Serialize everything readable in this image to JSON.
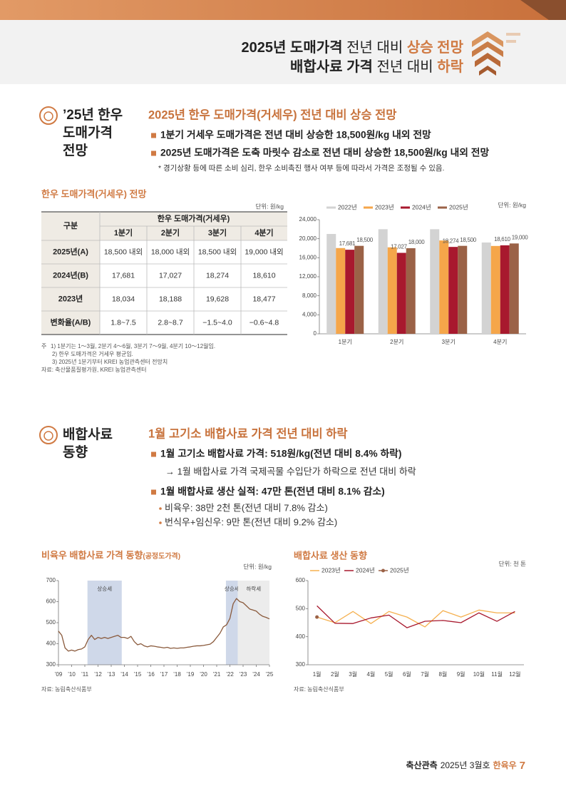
{
  "header": {
    "line1": [
      "2025년 도매가격",
      " 전년 대비 ",
      "상승 전망"
    ],
    "line2": [
      "배합사료 가격",
      " 전년 대비 ",
      "하락"
    ]
  },
  "section1": {
    "title": [
      "’25년 한우",
      "도매가격",
      "전망"
    ],
    "heading": "2025년 한우 도매가격(거세우) 전년 대비 상승 전망",
    "bullets": [
      "1분기 거세우 도매가격은 전년 대비 상승한 18,500원/kg 내외 전망",
      "2025년 도매가격은 도축 마릿수 감소로 전년 대비 상승한 18,500원/kg 내외 전망"
    ],
    "note": "* 경기상황 등에 따른 소비 심리, 한우 소비촉진 행사 여부 등에 따라서 가격은 조정될 수 있음."
  },
  "table": {
    "title": "한우 도매가격(거세우) 전망",
    "unit": "단위: 원/kg",
    "corner": "구분",
    "group_header": "한우 도매가격(거세우)",
    "columns": [
      "1분기",
      "2분기",
      "3분기",
      "4분기"
    ],
    "rows": [
      [
        "2025년(A)",
        "18,500 내외",
        "18,000 내외",
        "18,500 내외",
        "19,000 내외"
      ],
      [
        "2024년(B)",
        "17,681",
        "17,027",
        "18,274",
        "18,610"
      ],
      [
        "2023년",
        "18,034",
        "18,188",
        "19,628",
        "18,477"
      ],
      [
        "변화율(A/B)",
        "1.8~7.5",
        "2.8~8.7",
        "−1.5~4.0",
        "−0.6~4.8"
      ]
    ],
    "footnote_mark": "주",
    "footnotes": [
      "1) 1분기는 1～3월, 2분기 4～6월, 3분기 7～9월, 4분기 10～12월임.",
      "2) 한우 도매가격은 거세우 평균임.",
      "3) 2025년 1분기부터 KREI 농업관측센터 전망치"
    ],
    "source": "자료: 축산물품질평가원, KREI 농업관측센터"
  },
  "chart_data": [
    {
      "type": "bar",
      "unit": "단위: 원/kg",
      "categories": [
        "1분기",
        "2분기",
        "3분기",
        "4분기"
      ],
      "series": [
        {
          "name": "2022년",
          "color": "#d3d3d3",
          "values": [
            21000,
            22000,
            22000,
            19200
          ]
        },
        {
          "name": "2023년",
          "color": "#f5a64a",
          "values": [
            18034,
            18188,
            19628,
            18477
          ]
        },
        {
          "name": "2024년",
          "color": "#a8192e",
          "values": [
            17681,
            17027,
            18274,
            18610
          ],
          "value_labels": [
            "17,681",
            "17,027",
            "18,274",
            "18,610"
          ]
        },
        {
          "name": "2025년",
          "color": "#9b6247",
          "values": [
            18500,
            18000,
            18500,
            19000
          ],
          "value_labels": [
            "18,500",
            "18,000",
            "18,500",
            "19,000"
          ]
        }
      ],
      "ylim": [
        0,
        24000
      ],
      "yticks": [
        0,
        {
          "value": 4000,
          "label": "4,000"
        },
        {
          "value": 8000,
          "label": "8,000"
        },
        {
          "value": 12000,
          "label": "12,000"
        },
        {
          "value": 16000,
          "label": "16,000"
        },
        {
          "value": 20000,
          "label": "20,000"
        },
        {
          "value": 24000,
          "label": "24,000"
        }
      ],
      "grid": false,
      "legend": "top"
    },
    {
      "type": "line",
      "title": "비육우 배합사료 가격 동향",
      "title_note": "(공정도가격)",
      "unit": "단위: 원/kg",
      "source": "자료: 농림축산식품부",
      "x": [
        2009,
        2009.25,
        2009.5,
        2009.75,
        2010,
        2010.25,
        2010.5,
        2010.75,
        2011,
        2011.25,
        2011.5,
        2011.75,
        2012,
        2012.25,
        2012.5,
        2012.75,
        2013,
        2013.25,
        2013.5,
        2013.75,
        2014,
        2014.25,
        2014.5,
        2014.75,
        2015,
        2015.25,
        2015.5,
        2015.75,
        2016,
        2016.25,
        2016.5,
        2016.75,
        2017,
        2017.25,
        2017.5,
        2017.75,
        2018,
        2018.25,
        2018.5,
        2018.75,
        2019,
        2019.25,
        2019.5,
        2019.75,
        2020,
        2020.25,
        2020.5,
        2020.75,
        2021,
        2021.25,
        2021.5,
        2021.75,
        2022,
        2022.25,
        2022.5,
        2022.75,
        2023,
        2023.25,
        2023.5,
        2023.75,
        2024,
        2024.25,
        2024.5,
        2024.75,
        2025
      ],
      "values": [
        460,
        440,
        380,
        365,
        370,
        365,
        372,
        375,
        385,
        420,
        440,
        420,
        430,
        425,
        430,
        425,
        430,
        435,
        440,
        430,
        430,
        425,
        435,
        410,
        395,
        400,
        390,
        385,
        390,
        388,
        385,
        383,
        380,
        383,
        378,
        380,
        378,
        380,
        380,
        383,
        385,
        388,
        390,
        390,
        392,
        395,
        398,
        410,
        430,
        450,
        480,
        490,
        520,
        590,
        615,
        600,
        595,
        580,
        565,
        560,
        555,
        540,
        530,
        525,
        518
      ],
      "color": "#8a5a3c",
      "xlim": [
        2009,
        2025
      ],
      "xticks": [
        {
          "value": 2009,
          "label": "’09"
        },
        {
          "value": 2010,
          "label": "’10"
        },
        {
          "value": 2011,
          "label": "’11"
        },
        {
          "value": 2012,
          "label": "’12"
        },
        {
          "value": 2013,
          "label": "’13"
        },
        {
          "value": 2014,
          "label": "’14"
        },
        {
          "value": 2015,
          "label": "’15"
        },
        {
          "value": 2016,
          "label": "’16"
        },
        {
          "value": 2017,
          "label": "’17"
        },
        {
          "value": 2018,
          "label": "’18"
        },
        {
          "value": 2019,
          "label": "’19"
        },
        {
          "value": 2020,
          "label": "’20"
        },
        {
          "value": 2021,
          "label": "’21"
        },
        {
          "value": 2022,
          "label": "’22"
        },
        {
          "value": 2023,
          "label": "’23"
        },
        {
          "value": 2024,
          "label": "’24"
        },
        {
          "value": 2025,
          "label": "’25"
        }
      ],
      "ylim": [
        300,
        700
      ],
      "yticks": [
        300,
        400,
        500,
        600,
        700
      ],
      "annotations": [
        {
          "label": "상승세",
          "x": [
            2011.2,
            2013.8
          ],
          "color": "#cfd8e9"
        },
        {
          "label": "상승세",
          "x": [
            2021.7,
            2022.6
          ],
          "color": "#cfd8e9"
        },
        {
          "label": "하락세",
          "x": [
            2022.6,
            2025
          ],
          "color": "#ececec"
        }
      ]
    },
    {
      "type": "line",
      "title": "배합사료 생산 동향",
      "unit": "단위: 천 톤",
      "source": "자료: 농림축산식품부",
      "categories": [
        "1월",
        "2월",
        "3월",
        "4월",
        "5월",
        "6월",
        "7월",
        "8월",
        "9월",
        "10월",
        "11월",
        "12월"
      ],
      "series": [
        {
          "name": "2023년",
          "color": "#f5b04f",
          "values": [
            470,
            450,
            490,
            447,
            490,
            470,
            435,
            493,
            470,
            495,
            485,
            485
          ]
        },
        {
          "name": "2024년",
          "color": "#a8192e",
          "values": [
            510,
            448,
            447,
            467,
            477,
            432,
            455,
            458,
            450,
            485,
            455,
            490
          ]
        },
        {
          "name": "2025년",
          "color": "#9b6247",
          "marker": true,
          "values": [
            470,
            null,
            null,
            null,
            null,
            null,
            null,
            null,
            null,
            null,
            null,
            null
          ]
        }
      ],
      "ylim": [
        300,
        600
      ],
      "yticks": [
        300,
        400,
        500,
        600
      ],
      "legend": "top"
    }
  ],
  "section2": {
    "title": [
      "배합사료",
      "동향"
    ],
    "heading": "1월 고기소 배합사료 가격 전년 대비 하락",
    "bullets": [
      {
        "text": "1월 고기소 배합사료 가격: 518원/kg(전년 대비 8.4% 하락)",
        "detail": "→ 1월 배합사료 가격 국제곡물 수입단가 하락으로 전년 대비 하락"
      },
      {
        "text": "1월 배합사료 생산 실적: 47만 톤(전년 대비 8.1% 감소)",
        "items": [
          "비육우: 38만 2천 톤(전년 대비 7.8% 감소)",
          "번식우+임신우: 9만 톤(전년 대비 9.2% 감소)"
        ]
      }
    ]
  },
  "footer": {
    "publication": "축산관측",
    "issue": "2025년 3월호",
    "section": "한육우",
    "page": 7
  }
}
